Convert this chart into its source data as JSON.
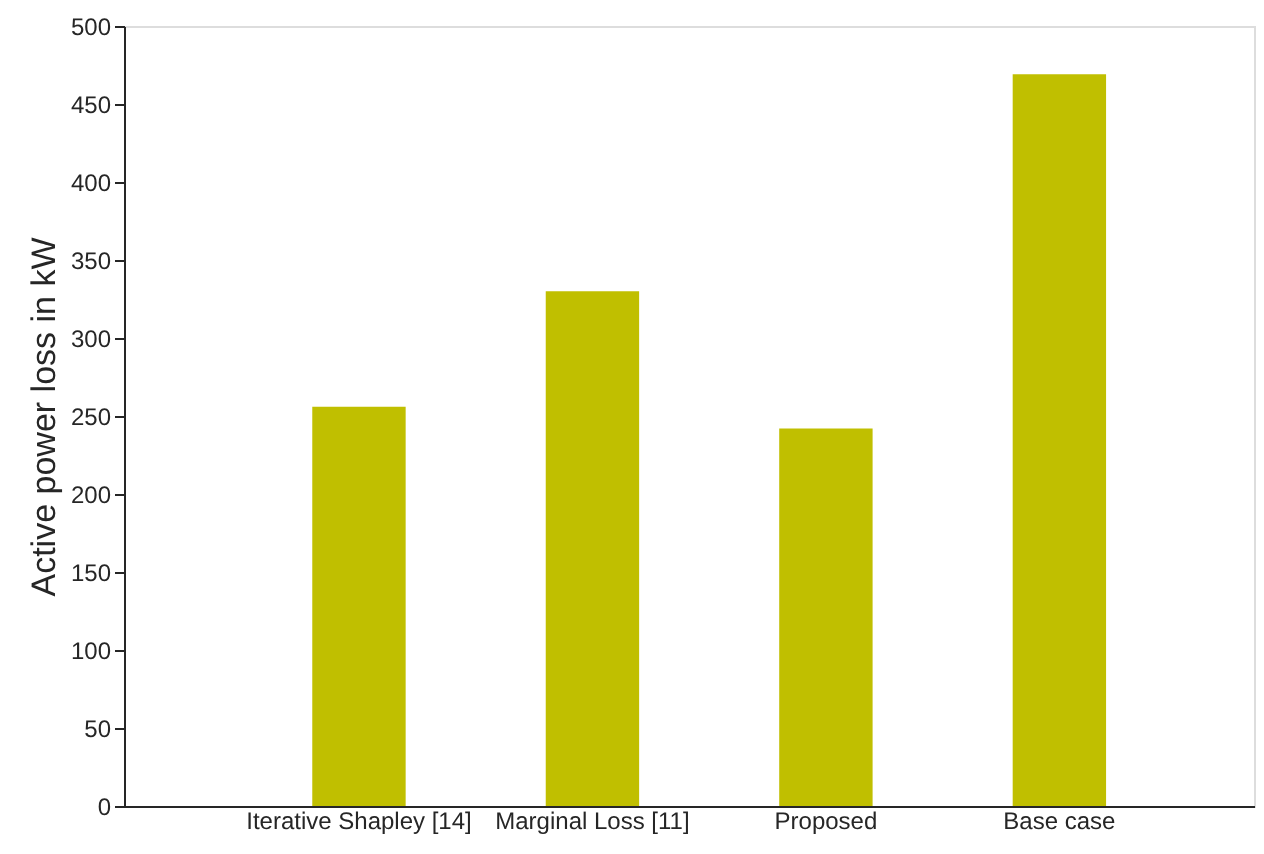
{
  "chart_data": {
    "type": "bar",
    "ylabel": "Active power loss in kW",
    "categories": [
      "Iterative Shapley [14]",
      "Marginal Loss [11]",
      "Proposed",
      "Base case"
    ],
    "values": [
      256,
      330,
      242,
      469
    ],
    "color": "#c0bf00",
    "ylim": [
      0,
      500
    ],
    "yticks": [
      0,
      50,
      100,
      150,
      200,
      250,
      300,
      350,
      400,
      450,
      500
    ],
    "grid": false
  }
}
